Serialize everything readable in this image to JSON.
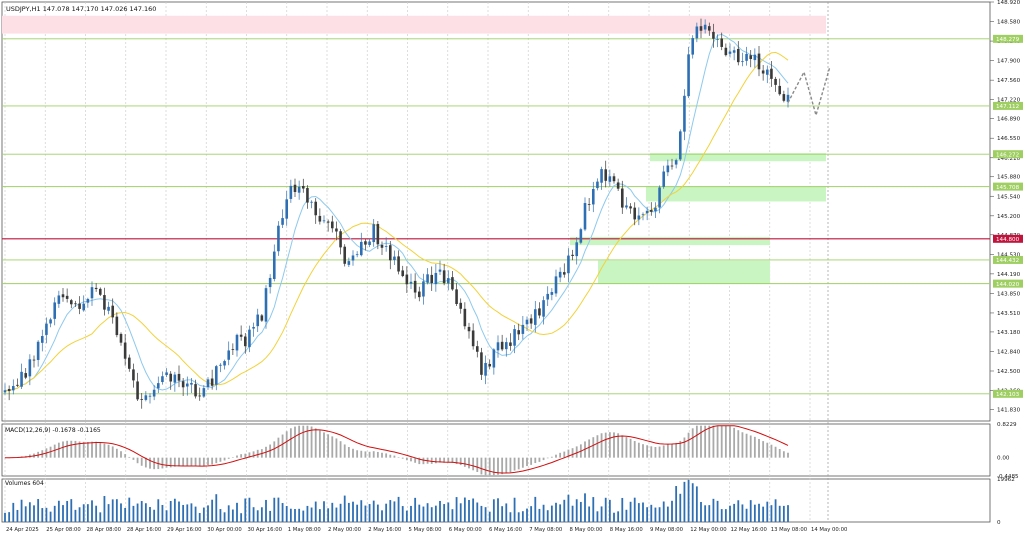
{
  "window": {
    "symbol_header": "USDJPY,H1  147.078 147.170 147.026 147.160"
  },
  "colors": {
    "bull_candle": "#2e6fb4",
    "bear_candle": "#3a3a3a",
    "ma_fast": "#8ec9ee",
    "ma_slow": "#f2d23a",
    "level_line": "#9fcf63",
    "level_label_bg": "#9fcf63",
    "support_line": "#c0143c",
    "demand_zone": "#c9f5c2",
    "supply_zone": "#fde0e6",
    "macd_hist": "#a9a9a9",
    "macd_signal": "#d10f0f",
    "volume_bar": "#2e6fb4",
    "grid": "#cfcfcf"
  },
  "chart_data": [
    {
      "type": "candlestick",
      "panel": "price",
      "ylim": [
        141.63,
        148.92
      ],
      "y_ticks": [
        "148.920",
        "148.580",
        "148.240",
        "147.900",
        "147.560",
        "147.220",
        "146.890",
        "146.550",
        "146.210",
        "145.880",
        "145.540",
        "145.200",
        "144.870",
        "144.530",
        "144.190",
        "143.850",
        "143.510",
        "143.180",
        "142.840",
        "142.500",
        "142.160",
        "141.830"
      ],
      "x_ticks": [
        "24 Apr 2025",
        "25 Apr 08:00",
        "28 Apr 08:00",
        "28 Apr 16:00",
        "29 Apr 16:00",
        "30 Apr 00:00",
        "30 Apr 16:00",
        "1 May 08:00",
        "2 May 00:00",
        "2 May 16:00",
        "5 May 08:00",
        "6 May 00:00",
        "6 May 16:00",
        "7 May 08:00",
        "8 May 00:00",
        "8 May 16:00",
        "9 May 08:00",
        "12 May 00:00",
        "12 May 16:00",
        "13 May 08:00",
        "14 May 00:00"
      ],
      "close_path": [
        142.2,
        142.35,
        142.6,
        143.2,
        143.6,
        143.8,
        143.65,
        143.9,
        143.7,
        143.3,
        142.6,
        142.05,
        142.2,
        142.5,
        142.4,
        142.25,
        142.15,
        142.4,
        142.8,
        143.0,
        143.1,
        143.5,
        144.6,
        145.5,
        145.75,
        145.4,
        145.1,
        144.9,
        144.3,
        144.6,
        144.95,
        144.7,
        144.3,
        144.0,
        143.9,
        144.2,
        144.1,
        143.7,
        143.1,
        142.5,
        142.85,
        143.0,
        143.2,
        143.4,
        143.7,
        144.0,
        144.4,
        145.0,
        145.7,
        145.95,
        145.6,
        145.25,
        145.1,
        145.3,
        146.0,
        146.3,
        148.2,
        148.55,
        148.4,
        148.05,
        147.95,
        148.05,
        147.7,
        147.4,
        147.17
      ],
      "levels": [
        "148.279",
        "147.112",
        "146.272",
        "145.708",
        "144.800",
        "144.432",
        "144.020",
        "142.103"
      ],
      "support_level": "144.800",
      "zones": [
        {
          "kind": "supply",
          "from": 148.37,
          "to": 148.68
        },
        {
          "kind": "demand",
          "from": 146.15,
          "to": 146.29
        },
        {
          "kind": "demand",
          "from": 145.45,
          "to": 145.71
        },
        {
          "kind": "demand",
          "from": 144.69,
          "to": 144.83
        },
        {
          "kind": "demand",
          "from": 144.02,
          "to": 144.42
        }
      ],
      "forecast_path": [
        147.17,
        147.7,
        146.95,
        147.8
      ],
      "moving_averages": [
        "fast",
        "slow"
      ]
    },
    {
      "type": "macd",
      "panel": "macd",
      "label": "MACD(12,26,9) -0.1678 -0.1165",
      "ylim": [
        -0.4485,
        0.8229
      ],
      "y_ticks": [
        "0.8229",
        "0.00",
        "-0.4485"
      ]
    },
    {
      "type": "bar",
      "panel": "volume",
      "label": "Volumes 604",
      "ylim": [
        0,
        19962
      ],
      "y_ticks": [
        "19962",
        "0"
      ]
    }
  ]
}
